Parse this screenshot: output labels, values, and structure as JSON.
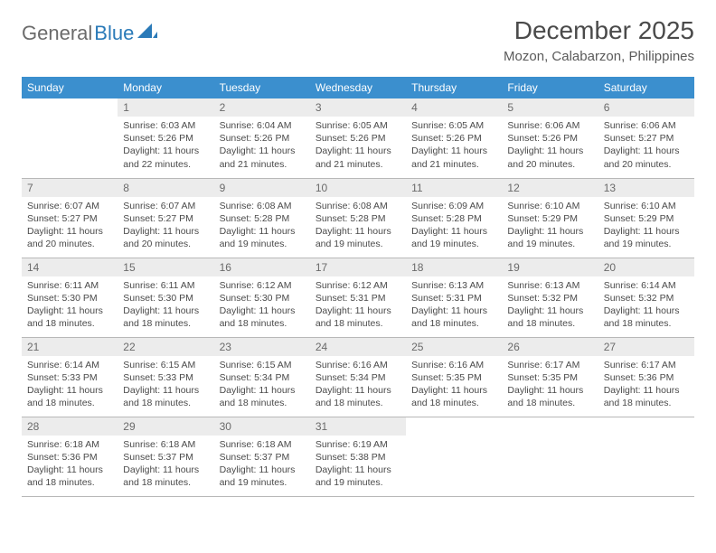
{
  "brand": {
    "part1": "General",
    "part2": "Blue"
  },
  "title": "December 2025",
  "location": "Mozon, Calabarzon, Philippines",
  "colors": {
    "header_bg": "#3b8fce",
    "header_fg": "#ffffff",
    "daynum_bg": "#ececec",
    "text": "#4a4a4a",
    "rule": "#b8b8b8",
    "logo_accent": "#2a7ab8"
  },
  "weekdays": [
    "Sunday",
    "Monday",
    "Tuesday",
    "Wednesday",
    "Thursday",
    "Friday",
    "Saturday"
  ],
  "weeks": [
    [
      {
        "empty": true
      },
      {
        "n": "1",
        "sr": "Sunrise: 6:03 AM",
        "ss": "Sunset: 5:26 PM",
        "dl1": "Daylight: 11 hours",
        "dl2": "and 22 minutes."
      },
      {
        "n": "2",
        "sr": "Sunrise: 6:04 AM",
        "ss": "Sunset: 5:26 PM",
        "dl1": "Daylight: 11 hours",
        "dl2": "and 21 minutes."
      },
      {
        "n": "3",
        "sr": "Sunrise: 6:05 AM",
        "ss": "Sunset: 5:26 PM",
        "dl1": "Daylight: 11 hours",
        "dl2": "and 21 minutes."
      },
      {
        "n": "4",
        "sr": "Sunrise: 6:05 AM",
        "ss": "Sunset: 5:26 PM",
        "dl1": "Daylight: 11 hours",
        "dl2": "and 21 minutes."
      },
      {
        "n": "5",
        "sr": "Sunrise: 6:06 AM",
        "ss": "Sunset: 5:26 PM",
        "dl1": "Daylight: 11 hours",
        "dl2": "and 20 minutes."
      },
      {
        "n": "6",
        "sr": "Sunrise: 6:06 AM",
        "ss": "Sunset: 5:27 PM",
        "dl1": "Daylight: 11 hours",
        "dl2": "and 20 minutes."
      }
    ],
    [
      {
        "n": "7",
        "sr": "Sunrise: 6:07 AM",
        "ss": "Sunset: 5:27 PM",
        "dl1": "Daylight: 11 hours",
        "dl2": "and 20 minutes."
      },
      {
        "n": "8",
        "sr": "Sunrise: 6:07 AM",
        "ss": "Sunset: 5:27 PM",
        "dl1": "Daylight: 11 hours",
        "dl2": "and 20 minutes."
      },
      {
        "n": "9",
        "sr": "Sunrise: 6:08 AM",
        "ss": "Sunset: 5:28 PM",
        "dl1": "Daylight: 11 hours",
        "dl2": "and 19 minutes."
      },
      {
        "n": "10",
        "sr": "Sunrise: 6:08 AM",
        "ss": "Sunset: 5:28 PM",
        "dl1": "Daylight: 11 hours",
        "dl2": "and 19 minutes."
      },
      {
        "n": "11",
        "sr": "Sunrise: 6:09 AM",
        "ss": "Sunset: 5:28 PM",
        "dl1": "Daylight: 11 hours",
        "dl2": "and 19 minutes."
      },
      {
        "n": "12",
        "sr": "Sunrise: 6:10 AM",
        "ss": "Sunset: 5:29 PM",
        "dl1": "Daylight: 11 hours",
        "dl2": "and 19 minutes."
      },
      {
        "n": "13",
        "sr": "Sunrise: 6:10 AM",
        "ss": "Sunset: 5:29 PM",
        "dl1": "Daylight: 11 hours",
        "dl2": "and 19 minutes."
      }
    ],
    [
      {
        "n": "14",
        "sr": "Sunrise: 6:11 AM",
        "ss": "Sunset: 5:30 PM",
        "dl1": "Daylight: 11 hours",
        "dl2": "and 18 minutes."
      },
      {
        "n": "15",
        "sr": "Sunrise: 6:11 AM",
        "ss": "Sunset: 5:30 PM",
        "dl1": "Daylight: 11 hours",
        "dl2": "and 18 minutes."
      },
      {
        "n": "16",
        "sr": "Sunrise: 6:12 AM",
        "ss": "Sunset: 5:30 PM",
        "dl1": "Daylight: 11 hours",
        "dl2": "and 18 minutes."
      },
      {
        "n": "17",
        "sr": "Sunrise: 6:12 AM",
        "ss": "Sunset: 5:31 PM",
        "dl1": "Daylight: 11 hours",
        "dl2": "and 18 minutes."
      },
      {
        "n": "18",
        "sr": "Sunrise: 6:13 AM",
        "ss": "Sunset: 5:31 PM",
        "dl1": "Daylight: 11 hours",
        "dl2": "and 18 minutes."
      },
      {
        "n": "19",
        "sr": "Sunrise: 6:13 AM",
        "ss": "Sunset: 5:32 PM",
        "dl1": "Daylight: 11 hours",
        "dl2": "and 18 minutes."
      },
      {
        "n": "20",
        "sr": "Sunrise: 6:14 AM",
        "ss": "Sunset: 5:32 PM",
        "dl1": "Daylight: 11 hours",
        "dl2": "and 18 minutes."
      }
    ],
    [
      {
        "n": "21",
        "sr": "Sunrise: 6:14 AM",
        "ss": "Sunset: 5:33 PM",
        "dl1": "Daylight: 11 hours",
        "dl2": "and 18 minutes."
      },
      {
        "n": "22",
        "sr": "Sunrise: 6:15 AM",
        "ss": "Sunset: 5:33 PM",
        "dl1": "Daylight: 11 hours",
        "dl2": "and 18 minutes."
      },
      {
        "n": "23",
        "sr": "Sunrise: 6:15 AM",
        "ss": "Sunset: 5:34 PM",
        "dl1": "Daylight: 11 hours",
        "dl2": "and 18 minutes."
      },
      {
        "n": "24",
        "sr": "Sunrise: 6:16 AM",
        "ss": "Sunset: 5:34 PM",
        "dl1": "Daylight: 11 hours",
        "dl2": "and 18 minutes."
      },
      {
        "n": "25",
        "sr": "Sunrise: 6:16 AM",
        "ss": "Sunset: 5:35 PM",
        "dl1": "Daylight: 11 hours",
        "dl2": "and 18 minutes."
      },
      {
        "n": "26",
        "sr": "Sunrise: 6:17 AM",
        "ss": "Sunset: 5:35 PM",
        "dl1": "Daylight: 11 hours",
        "dl2": "and 18 minutes."
      },
      {
        "n": "27",
        "sr": "Sunrise: 6:17 AM",
        "ss": "Sunset: 5:36 PM",
        "dl1": "Daylight: 11 hours",
        "dl2": "and 18 minutes."
      }
    ],
    [
      {
        "n": "28",
        "sr": "Sunrise: 6:18 AM",
        "ss": "Sunset: 5:36 PM",
        "dl1": "Daylight: 11 hours",
        "dl2": "and 18 minutes."
      },
      {
        "n": "29",
        "sr": "Sunrise: 6:18 AM",
        "ss": "Sunset: 5:37 PM",
        "dl1": "Daylight: 11 hours",
        "dl2": "and 18 minutes."
      },
      {
        "n": "30",
        "sr": "Sunrise: 6:18 AM",
        "ss": "Sunset: 5:37 PM",
        "dl1": "Daylight: 11 hours",
        "dl2": "and 19 minutes."
      },
      {
        "n": "31",
        "sr": "Sunrise: 6:19 AM",
        "ss": "Sunset: 5:38 PM",
        "dl1": "Daylight: 11 hours",
        "dl2": "and 19 minutes."
      },
      {
        "empty": true
      },
      {
        "empty": true
      },
      {
        "empty": true
      }
    ]
  ]
}
